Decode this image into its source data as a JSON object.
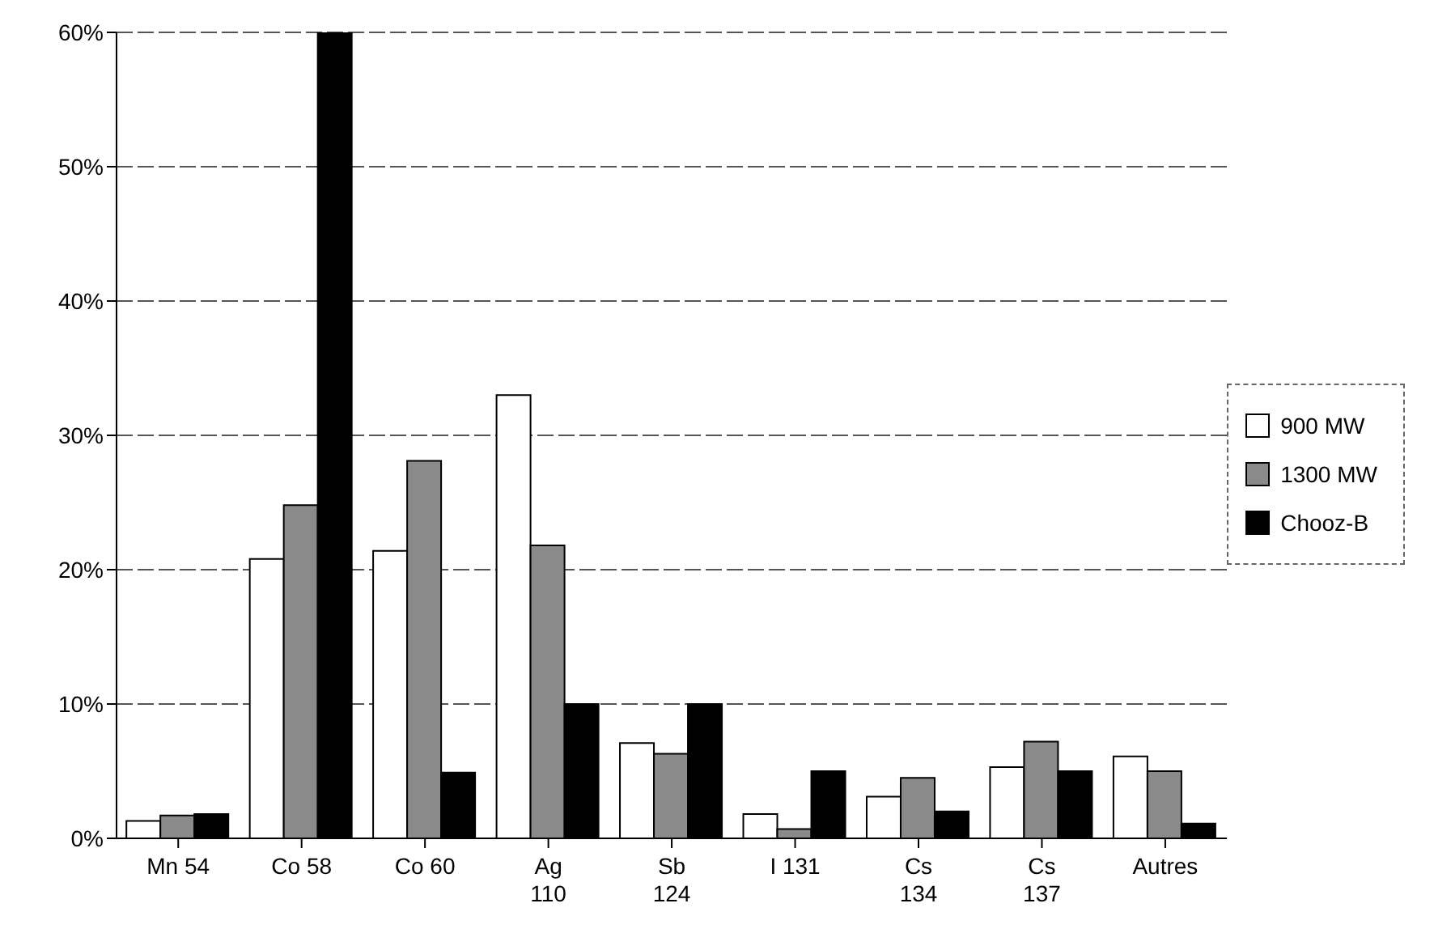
{
  "chart_data": {
    "type": "bar",
    "categories": [
      "Mn 54",
      "Co 58",
      "Co 60",
      "Ag\n110",
      "Sb\n124",
      "I 131",
      "Cs\n134",
      "Cs\n137",
      "Autres"
    ],
    "series": [
      {
        "name": "900 MW",
        "color": "#ffffff",
        "values": [
          1.3,
          20.8,
          21.4,
          33,
          7.1,
          1.8,
          3.1,
          5.3,
          6.1
        ]
      },
      {
        "name": "1300 MW",
        "color": "#8a8a8a",
        "values": [
          1.7,
          24.8,
          28.1,
          21.8,
          6.3,
          0.7,
          4.5,
          7.2,
          5.0
        ]
      },
      {
        "name": "Chooz-B",
        "color": "#000000",
        "values": [
          1.8,
          60,
          4.9,
          10.0,
          10.0,
          5.0,
          2.0,
          5.0,
          1.1
        ]
      }
    ],
    "ylim": [
      0,
      60
    ],
    "yticks": [
      {
        "value": 0,
        "label": "0%"
      },
      {
        "value": 10,
        "label": "10%"
      },
      {
        "value": 20,
        "label": "20%"
      },
      {
        "value": 30,
        "label": "30%"
      },
      {
        "value": 40,
        "label": "40%"
      },
      {
        "value": 50,
        "label": "50%"
      },
      {
        "value": 60,
        "label": "60%"
      }
    ],
    "grid": "y",
    "legend": "right"
  }
}
